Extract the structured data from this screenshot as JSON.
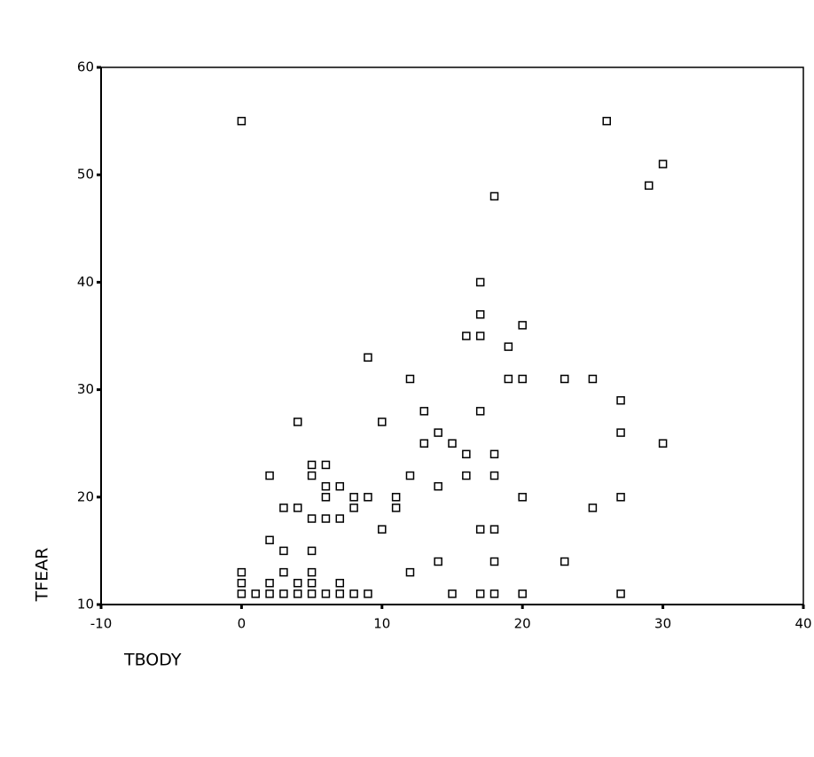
{
  "chart_data": {
    "type": "scatter",
    "x_label": "TBODY",
    "y_label": "TFEAR",
    "color": "#000000",
    "xlim": [
      -10,
      40
    ],
    "ylim": [
      10,
      60
    ],
    "xticks": [
      -10,
      0,
      10,
      20,
      30,
      40
    ],
    "yticks": [
      10,
      20,
      30,
      40,
      50,
      60
    ],
    "x": [
      0,
      26,
      30,
      29,
      18,
      17,
      17,
      20,
      16,
      17,
      19,
      9,
      12,
      19,
      20,
      23,
      25,
      27,
      10,
      4,
      13,
      17,
      14,
      27,
      13,
      15,
      30,
      16,
      18,
      5,
      6,
      2,
      5,
      12,
      16,
      18,
      6,
      7,
      14,
      6,
      8,
      9,
      11,
      20,
      27,
      3,
      4,
      8,
      11,
      25,
      5,
      6,
      7,
      10,
      17,
      18,
      2,
      3,
      5,
      14,
      18,
      23,
      3,
      5,
      12,
      0,
      0,
      2,
      4,
      5,
      7,
      0,
      1,
      2,
      3,
      4,
      5,
      6,
      7,
      8,
      9,
      15,
      17,
      18,
      20,
      27
    ],
    "y": [
      55,
      55,
      51,
      49,
      48,
      40,
      37,
      36,
      35,
      35,
      34,
      33,
      31,
      31,
      31,
      31,
      31,
      29,
      27,
      27,
      28,
      28,
      26,
      26,
      25,
      25,
      25,
      24,
      24,
      23,
      23,
      22,
      22,
      22,
      22,
      22,
      21,
      21,
      21,
      20,
      20,
      20,
      20,
      20,
      20,
      19,
      19,
      19,
      19,
      19,
      18,
      18,
      18,
      17,
      17,
      17,
      16,
      15,
      15,
      14,
      14,
      14,
      13,
      13,
      13,
      13,
      12,
      12,
      12,
      12,
      12,
      11,
      11,
      11,
      11,
      11,
      11,
      11,
      11,
      11,
      11,
      11,
      11,
      11,
      11,
      11
    ]
  }
}
